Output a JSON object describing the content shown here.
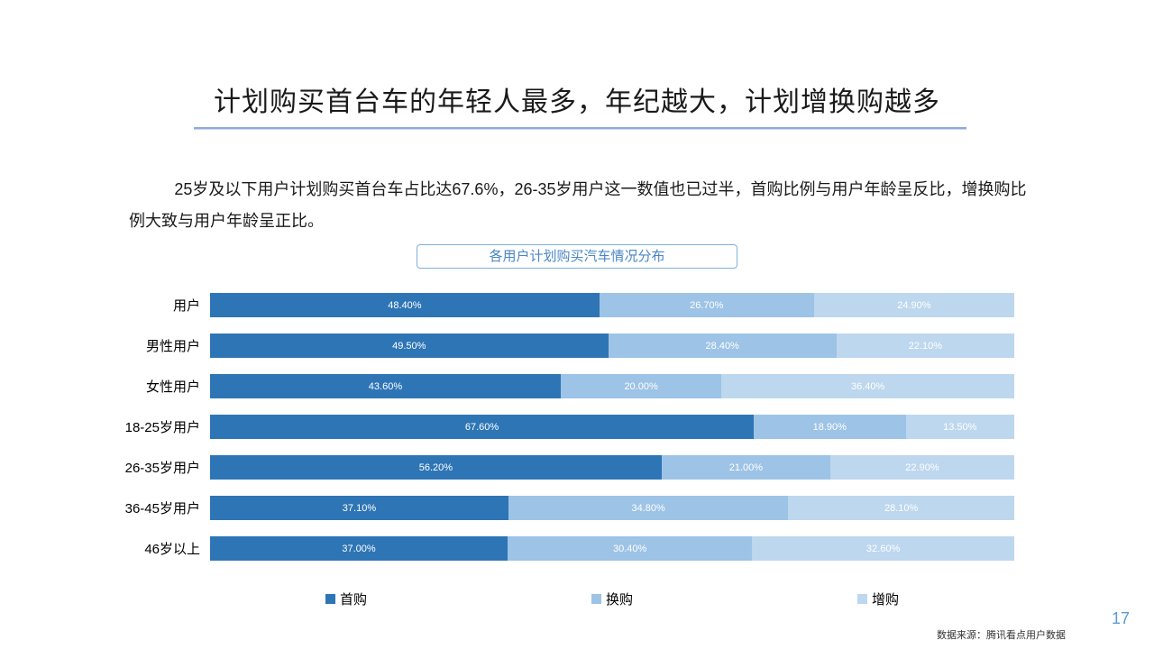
{
  "slide": {
    "title": "计划购买首台车的年轻人最多，年纪越大，计划增换购越多",
    "paragraph": "25岁及以下用户计划购买首台车占比达67.6%，26-35岁用户这一数值也已过半，首购比例与用户年龄呈反比，增换购比例大致与用户年龄呈正比。",
    "source": "数据来源：腾讯看点用户数据",
    "page_number": "17",
    "accent_color": "#5B9BD5",
    "underline_color": "#8EAADB"
  },
  "chart": {
    "title": "各用户计划购买汽车情况分布"
  },
  "chart_data": {
    "type": "bar",
    "orientation": "horizontal-stacked",
    "title": "各用户计划购买汽车情况分布",
    "categories": [
      "用户",
      "男性用户",
      "女性用户",
      "18-25岁用户",
      "26-35岁用户",
      "36-45岁用户",
      "46岁以上"
    ],
    "series": [
      {
        "key": "first-purchase",
        "name": "首购",
        "color": "#2E75B6",
        "values": [
          48.4,
          49.5,
          43.6,
          67.6,
          56.2,
          37.1,
          37.0
        ]
      },
      {
        "key": "replacement-purchase",
        "name": "换购",
        "color": "#9DC3E6",
        "values": [
          26.7,
          28.4,
          20.0,
          18.9,
          21.0,
          34.8,
          30.4
        ]
      },
      {
        "key": "additional-purchase",
        "name": "增购",
        "color": "#BDD7EE",
        "values": [
          24.9,
          22.1,
          36.4,
          13.5,
          22.9,
          28.1,
          32.6
        ]
      }
    ],
    "value_label_format": "0.00%",
    "value_label_color": "#ffffff",
    "xlim": [
      0,
      100
    ],
    "grid": false,
    "legend_position": "bottom"
  }
}
